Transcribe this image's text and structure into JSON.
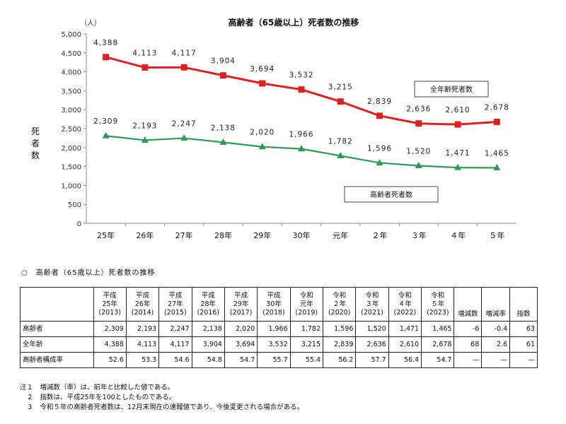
{
  "chart_data": {
    "type": "line",
    "title": "高齢者（65歳以上）死者数の推移",
    "unit_label": "（人）",
    "ylabel": "死者数",
    "ylim": [
      0,
      5000
    ],
    "yticks": [
      "0",
      "500",
      "1,000",
      "1,500",
      "2,000",
      "2,500",
      "3,000",
      "3,500",
      "4,000",
      "4,500",
      "5,000"
    ],
    "categories": [
      "25年",
      "26年",
      "27年",
      "28年",
      "29年",
      "30年",
      "元年",
      "２年",
      "３年",
      "４年",
      "５年"
    ],
    "grid": false,
    "series": [
      {
        "name": "全年齢死者数",
        "color": "#e02020",
        "marker": "square",
        "values": [
          4388,
          4113,
          4117,
          3904,
          3694,
          3532,
          3215,
          2839,
          2636,
          2610,
          2678
        ],
        "labels": [
          "4,388",
          "4,113",
          "4,117",
          "3,904",
          "3,694",
          "3,532",
          "3,215",
          "2,839",
          "2,636",
          "2,610",
          "2,678"
        ]
      },
      {
        "name": "高齢者死者数",
        "color": "#2e9a58",
        "marker": "triangle",
        "values": [
          2309,
          2193,
          2247,
          2138,
          2020,
          1966,
          1782,
          1596,
          1520,
          1471,
          1465
        ],
        "labels": [
          "2,309",
          "2,193",
          "2,247",
          "2,138",
          "2,020",
          "1,966",
          "1,782",
          "1,596",
          "1,520",
          "1,471",
          "1,465"
        ]
      }
    ]
  },
  "section_title": "○　高齢者（65歳以上）死者数の推移",
  "table": {
    "columns": [
      {
        "era": "平成",
        "year": "25年",
        "ad": "(2013)"
      },
      {
        "era": "平成",
        "year": "26年",
        "ad": "(2014)"
      },
      {
        "era": "平成",
        "year": "27年",
        "ad": "(2015)"
      },
      {
        "era": "平成",
        "year": "28年",
        "ad": "(2016)"
      },
      {
        "era": "平成",
        "year": "29年",
        "ad": "(2017)"
      },
      {
        "era": "平成",
        "year": "30年",
        "ad": "(2018)"
      },
      {
        "era": "令和",
        "year": "元年",
        "ad": "(2019)"
      },
      {
        "era": "令和",
        "year": "２年",
        "ad": "(2020)"
      },
      {
        "era": "令和",
        "year": "３年",
        "ad": "(2021)"
      },
      {
        "era": "令和",
        "year": "４年",
        "ad": "(2022)"
      },
      {
        "era": "令和",
        "year": "５年",
        "ad": "(2023)"
      }
    ],
    "stat_headers": [
      "増減数",
      "増減率",
      "指数"
    ],
    "rows": [
      {
        "label": "高齢者",
        "values": [
          "2,309",
          "2,193",
          "2,247",
          "2,138",
          "2,020",
          "1,966",
          "1,782",
          "1,596",
          "1,520",
          "1,471",
          "1,465"
        ],
        "stats": [
          "-6",
          "-0.4",
          "63"
        ]
      },
      {
        "label": "全年齢",
        "values": [
          "4,388",
          "4,113",
          "4,117",
          "3,904",
          "3,694",
          "3,532",
          "3,215",
          "2,839",
          "2,636",
          "2,610",
          "2,678"
        ],
        "stats": [
          "68",
          "2.6",
          "61"
        ]
      },
      {
        "label": "高齢者構成率",
        "values": [
          "52.6",
          "53.3",
          "54.6",
          "54.8",
          "54.7",
          "55.7",
          "55.4",
          "56.2",
          "57.7",
          "56.4",
          "54.7"
        ],
        "stats": [
          "—",
          "—",
          "—"
        ]
      }
    ]
  },
  "notes": [
    "注１　増減数（率）は、前年と比較した値である。",
    "　２　指数は、平成25年を100としたものである。",
    "　３　令和５年の高齢者死者数は、12月末現在の速報値であり、今後変更される場合がある。"
  ]
}
